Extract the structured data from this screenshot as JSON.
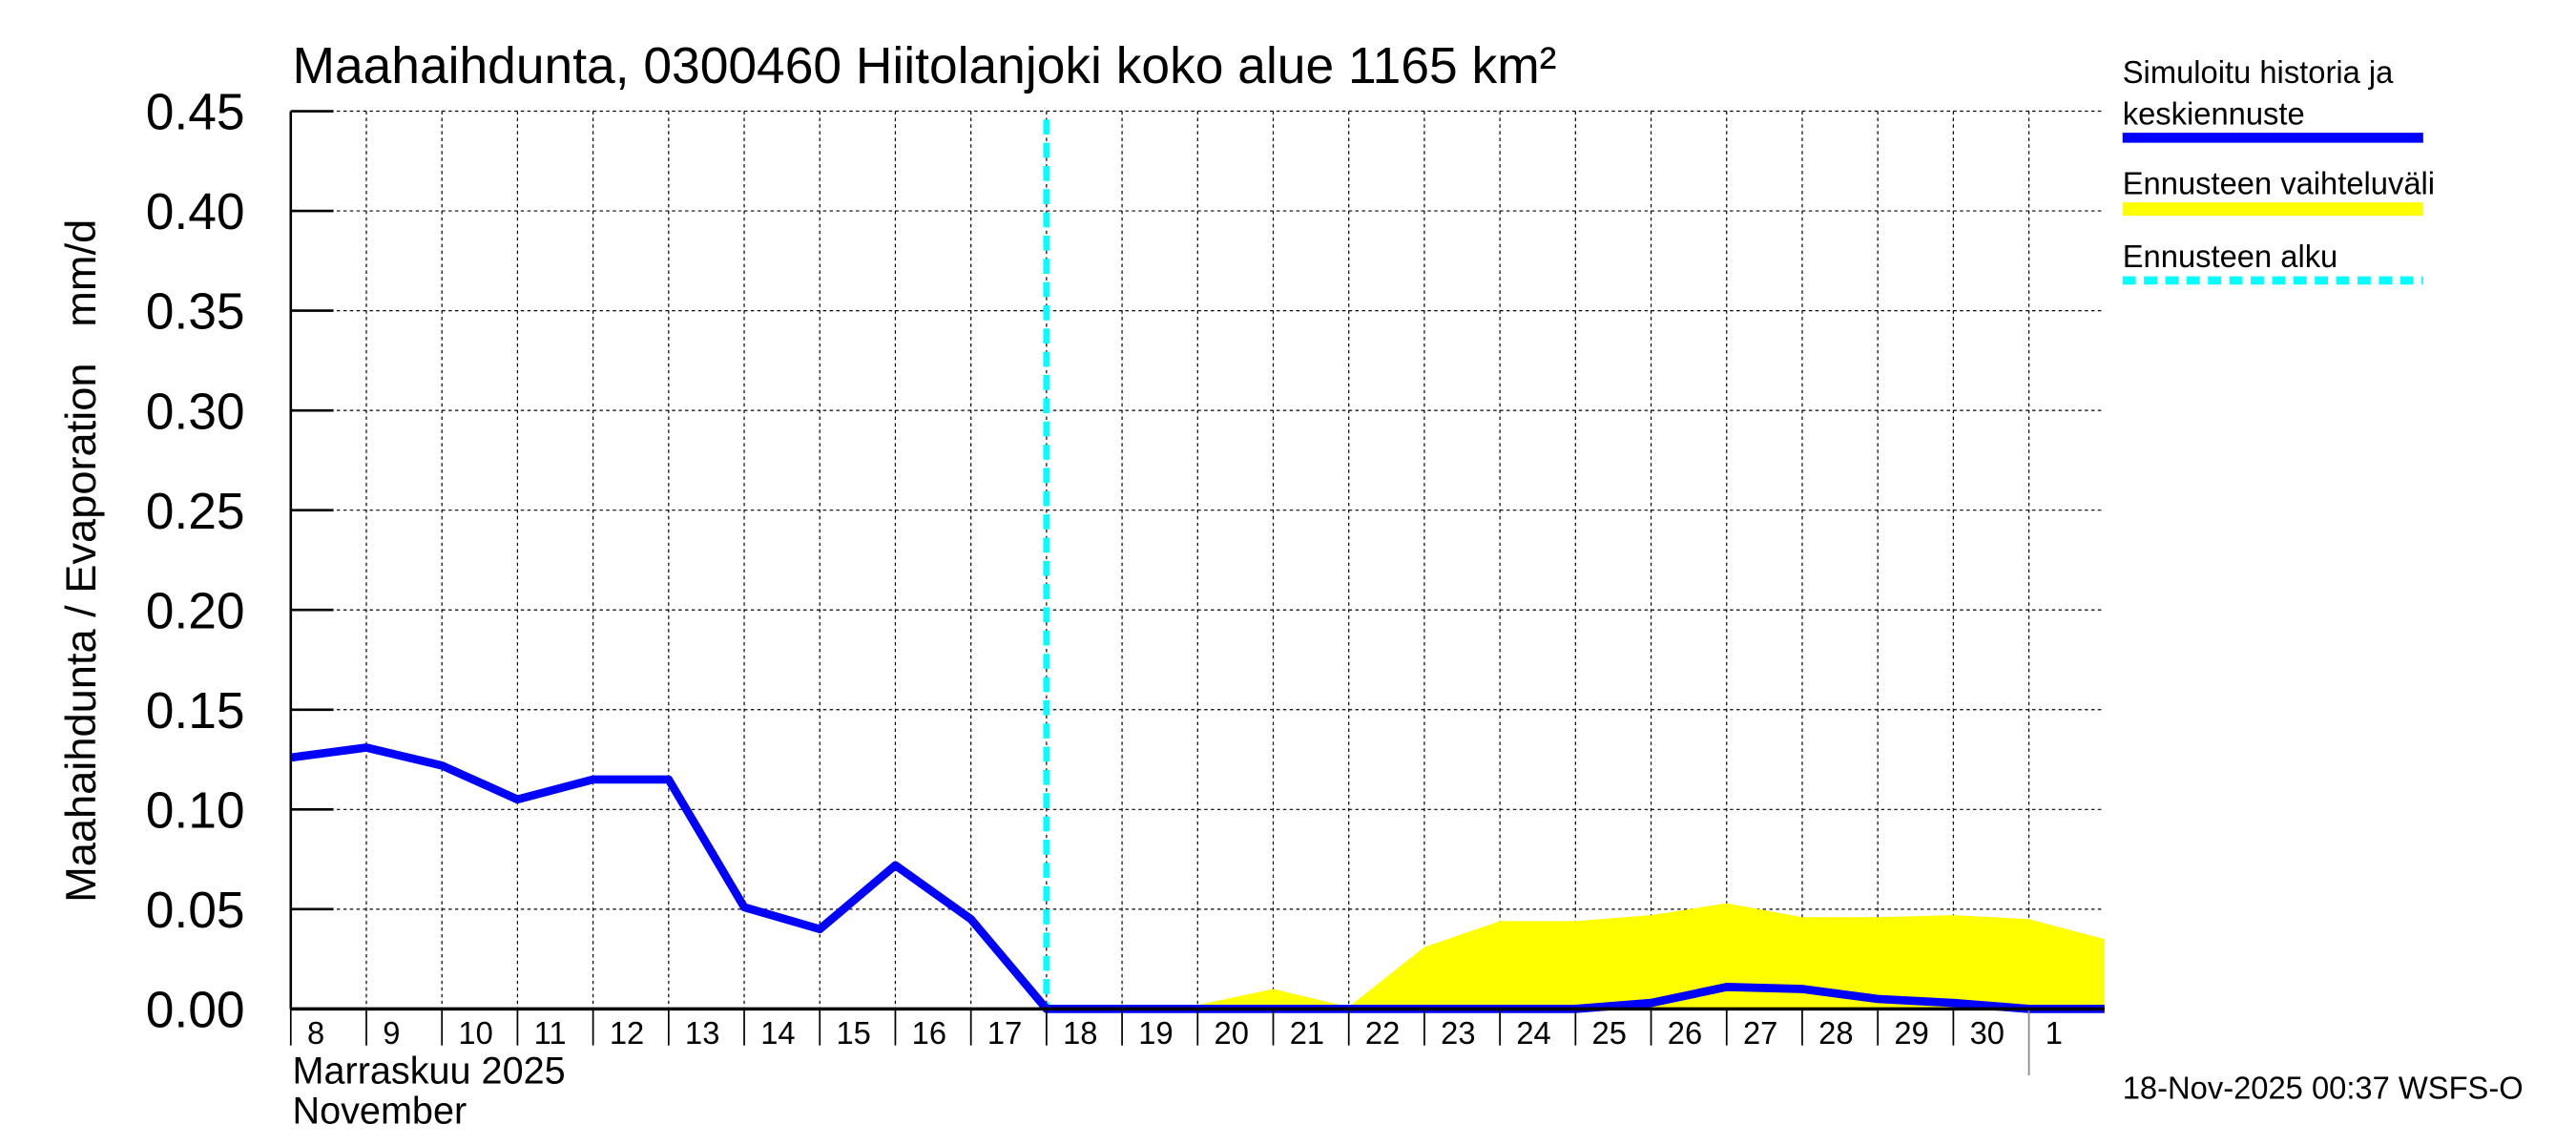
{
  "chart_data": {
    "type": "line",
    "title": "Maahaihdunta, 0300460 Hiitolanjoki koko alue 1165 km²",
    "ylabel": "Maahaihdunta / Evaporation   mm/d",
    "xlabel_line1": "Marraskuu 2025",
    "xlabel_line2": "November",
    "ylim": [
      0,
      0.45
    ],
    "yticks": [
      "0.00",
      "0.05",
      "0.10",
      "0.15",
      "0.20",
      "0.25",
      "0.30",
      "0.35",
      "0.40",
      "0.45"
    ],
    "x": [
      "2025-11-08",
      "2025-11-09",
      "2025-11-10",
      "2025-11-11",
      "2025-11-12",
      "2025-11-13",
      "2025-11-14",
      "2025-11-15",
      "2025-11-16",
      "2025-11-17",
      "2025-11-18",
      "2025-11-19",
      "2025-11-20",
      "2025-11-21",
      "2025-11-22",
      "2025-11-23",
      "2025-11-24",
      "2025-11-25",
      "2025-11-26",
      "2025-11-27",
      "2025-11-28",
      "2025-11-29",
      "2025-11-30",
      "2025-12-01",
      "2025-12-02"
    ],
    "xtick_labels": [
      "8",
      "9",
      "10",
      "11",
      "12",
      "13",
      "14",
      "15",
      "16",
      "17",
      "18",
      "19",
      "20",
      "21",
      "22",
      "23",
      "24",
      "25",
      "26",
      "27",
      "28",
      "29",
      "30",
      "1"
    ],
    "grid": true,
    "legend_placement": "right",
    "forecast_start": "2025-11-18",
    "series": [
      {
        "name": "Simuloitu historia ja keskiennuste",
        "color": "#0000ff",
        "values": [
          0.126,
          0.131,
          0.122,
          0.105,
          0.115,
          0.115,
          0.051,
          0.04,
          0.072,
          0.045,
          0.0,
          0.0,
          0.0,
          0.0,
          0.0,
          0.0,
          0.0,
          0.0,
          0.003,
          0.011,
          0.01,
          0.005,
          0.003,
          0.0,
          0.0
        ]
      },
      {
        "name": "Ennusteen vaihteluväli",
        "color": "#ffff00",
        "type": "band",
        "start": "2025-11-18",
        "upper": [
          0.0,
          0.0,
          0.002,
          0.01,
          0.001,
          0.031,
          0.044,
          0.044,
          0.047,
          0.053,
          0.046,
          0.046,
          0.047,
          0.045,
          0.035
        ],
        "lower": [
          0,
          0,
          0,
          0,
          0,
          0,
          0,
          0,
          0,
          0,
          0,
          0,
          0,
          0,
          0
        ]
      },
      {
        "name": "Ennusteen alku",
        "color": "#00ffff",
        "type": "vline"
      }
    ],
    "legend": [
      {
        "label_line1": "Simuloitu historia ja",
        "label_line2": "keskiennuste",
        "color": "#0000ff"
      },
      {
        "label_line1": "Ennusteen vaihteluväli",
        "color": "#ffff00"
      },
      {
        "label_line1": "Ennusteen alku",
        "color": "#00ffff"
      }
    ],
    "footer": "18-Nov-2025 00:37 WSFS-O"
  }
}
